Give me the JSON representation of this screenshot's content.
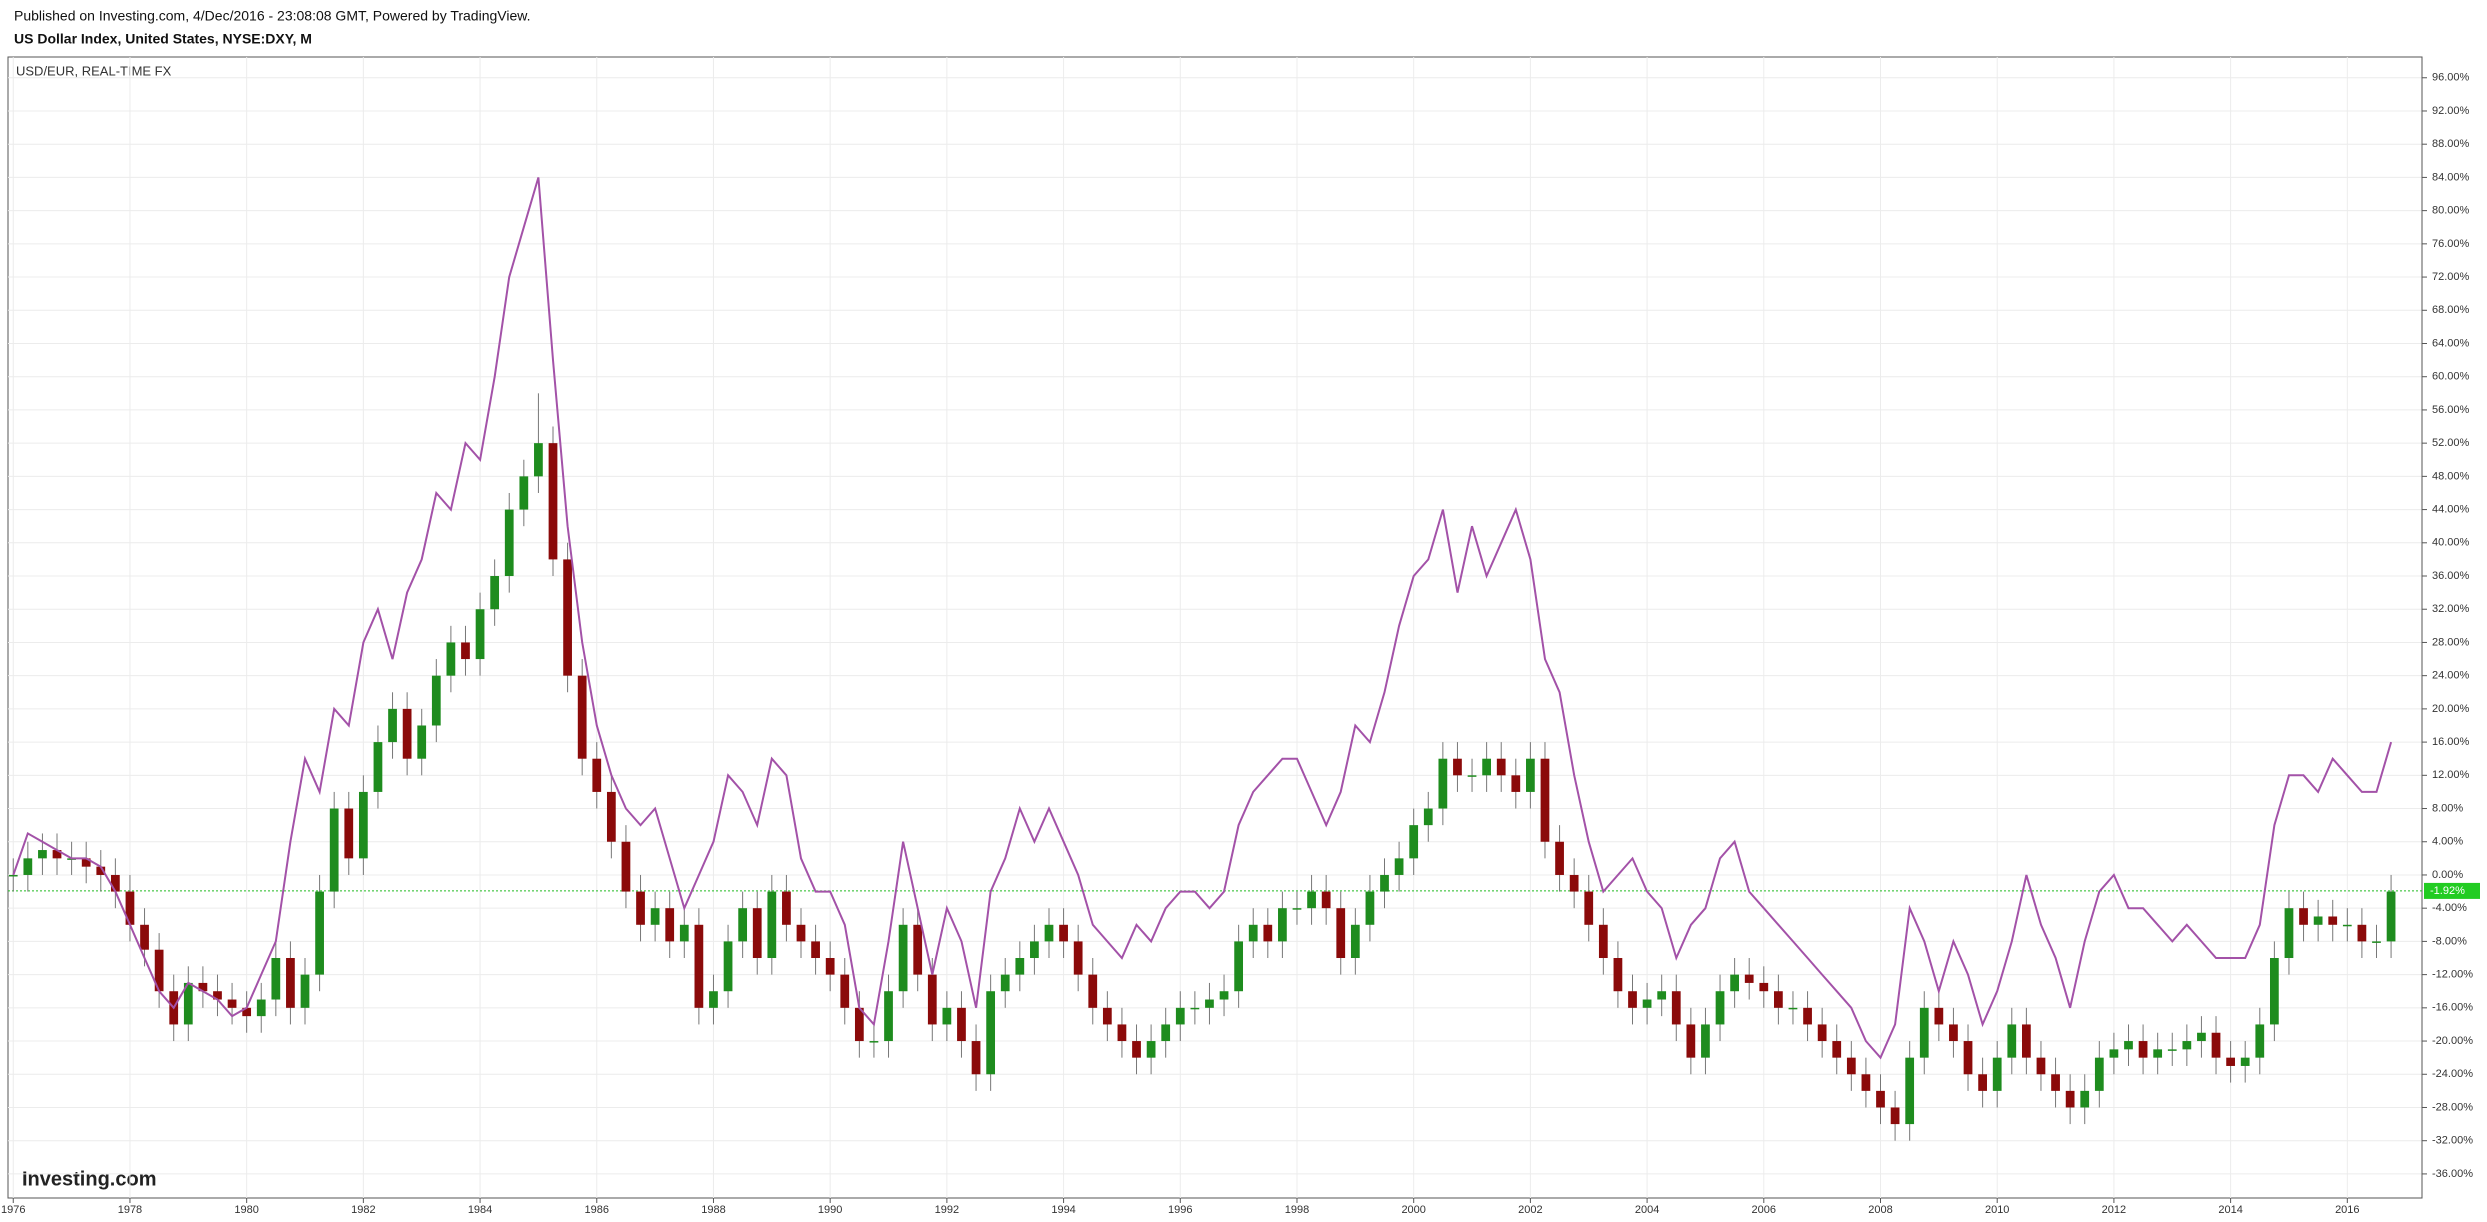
{
  "header": {
    "published": "Published on Investing.com, 4/Dec/2016 - 23:08:08 GMT, Powered by TradingView.",
    "symbol": "US Dollar Index, United States, NYSE:DXY, M"
  },
  "chart_data": {
    "type": "candlestick",
    "legend_label": "USD/EUR, REAL-TIME FX",
    "watermark": "Investing.com",
    "x": [
      1976,
      1976.25,
      1976.5,
      1976.75,
      1977,
      1977.25,
      1977.5,
      1977.75,
      1978,
      1978.25,
      1978.5,
      1978.75,
      1979,
      1979.25,
      1979.5,
      1979.75,
      1980,
      1980.25,
      1980.5,
      1980.75,
      1981,
      1981.25,
      1981.5,
      1981.75,
      1982,
      1982.25,
      1982.5,
      1982.75,
      1983,
      1983.25,
      1983.5,
      1983.75,
      1984,
      1984.25,
      1984.5,
      1984.75,
      1985,
      1985.25,
      1985.5,
      1985.75,
      1986,
      1986.25,
      1986.5,
      1986.75,
      1987,
      1987.25,
      1987.5,
      1987.75,
      1988,
      1988.25,
      1988.5,
      1988.75,
      1989,
      1989.25,
      1989.5,
      1989.75,
      1990,
      1990.25,
      1990.5,
      1990.75,
      1991,
      1991.25,
      1991.5,
      1991.75,
      1992,
      1992.25,
      1992.5,
      1992.75,
      1993,
      1993.25,
      1993.5,
      1993.75,
      1994,
      1994.25,
      1994.5,
      1994.75,
      1995,
      1995.25,
      1995.5,
      1995.75,
      1996,
      1996.25,
      1996.5,
      1996.75,
      1997,
      1997.25,
      1997.5,
      1997.75,
      1998,
      1998.25,
      1998.5,
      1998.75,
      1999,
      1999.25,
      1999.5,
      1999.75,
      2000,
      2000.25,
      2000.5,
      2000.75,
      2001,
      2001.25,
      2001.5,
      2001.75,
      2002,
      2002.25,
      2002.5,
      2002.75,
      2003,
      2003.25,
      2003.5,
      2003.75,
      2004,
      2004.25,
      2004.5,
      2004.75,
      2005,
      2005.25,
      2005.5,
      2005.75,
      2006,
      2006.25,
      2006.5,
      2006.75,
      2007,
      2007.25,
      2007.5,
      2007.75,
      2008,
      2008.25,
      2008.5,
      2008.75,
      2009,
      2009.25,
      2009.5,
      2009.75,
      2010,
      2010.25,
      2010.5,
      2010.75,
      2011,
      2011.25,
      2011.5,
      2011.75,
      2012,
      2012.25,
      2012.5,
      2012.75,
      2013,
      2013.25,
      2013.5,
      2013.75,
      2014,
      2014.25,
      2014.5,
      2014.75,
      2015,
      2015.25,
      2015.5,
      2015.75,
      2016,
      2016.25,
      2016.5,
      2016.75
    ],
    "candles": {
      "up_color": "#1e8c1e",
      "down_color": "#8b0a0a",
      "open": [
        0,
        0,
        2,
        3,
        2,
        2,
        1,
        0,
        -2,
        -6,
        -9,
        -14,
        -18,
        -13,
        -14,
        -15,
        -16,
        -17,
        -15,
        -10,
        -16,
        -12,
        -2,
        8,
        2,
        10,
        16,
        20,
        14,
        18,
        24,
        28,
        26,
        32,
        36,
        44,
        48,
        52,
        38,
        24,
        14,
        10,
        4,
        -2,
        -6,
        -4,
        -8,
        -6,
        -16,
        -14,
        -8,
        -4,
        -10,
        -2,
        -6,
        -8,
        -10,
        -12,
        -16,
        -20,
        -20,
        -14,
        -6,
        -12,
        -18,
        -16,
        -20,
        -24,
        -14,
        -12,
        -10,
        -8,
        -6,
        -8,
        -12,
        -16,
        -18,
        -20,
        -22,
        -20,
        -18,
        -16,
        -16,
        -15,
        -14,
        -8,
        -6,
        -8,
        -4,
        -4,
        -2,
        -4,
        -10,
        -6,
        -2,
        0,
        2,
        6,
        8,
        14,
        12,
        12,
        14,
        12,
        10,
        14,
        4,
        0,
        -2,
        -6,
        -10,
        -14,
        -16,
        -15,
        -14,
        -18,
        -22,
        -18,
        -14,
        -12,
        -13,
        -14,
        -16,
        -16,
        -18,
        -20,
        -22,
        -24,
        -26,
        -28,
        -30,
        -22,
        -16,
        -18,
        -20,
        -24,
        -26,
        -22,
        -18,
        -22,
        -24,
        -26,
        -28,
        -26,
        -22,
        -21,
        -20,
        -22,
        -21,
        -21,
        -20,
        -19,
        -22,
        -23,
        -22,
        -18,
        -10,
        -4,
        -6,
        -5,
        -6,
        -6,
        -8,
        -8
      ],
      "high": [
        2,
        4,
        5,
        5,
        4,
        4,
        3,
        2,
        0,
        -4,
        -7,
        -12,
        -11,
        -11,
        -12,
        -13,
        -14,
        -13,
        -8,
        -8,
        -10,
        0,
        10,
        10,
        12,
        18,
        22,
        22,
        20,
        26,
        30,
        30,
        34,
        38,
        46,
        50,
        58,
        54,
        40,
        26,
        16,
        12,
        6,
        0,
        -2,
        -2,
        -4,
        -4,
        -12,
        -6,
        -2,
        -2,
        0,
        0,
        -4,
        -6,
        -8,
        -10,
        -14,
        -18,
        -12,
        -4,
        -4,
        -10,
        -14,
        -14,
        -18,
        -12,
        -10,
        -8,
        -6,
        -4,
        -4,
        -6,
        -10,
        -14,
        -16,
        -18,
        -18,
        -16,
        -14,
        -14,
        -13,
        -12,
        -6,
        -4,
        -4,
        -2,
        -2,
        0,
        0,
        -2,
        -4,
        0,
        2,
        4,
        8,
        10,
        16,
        16,
        14,
        16,
        16,
        14,
        16,
        16,
        6,
        2,
        0,
        -4,
        -8,
        -12,
        -13,
        -12,
        -12,
        -16,
        -16,
        -12,
        -10,
        -10,
        -11,
        -12,
        -14,
        -14,
        -16,
        -18,
        -20,
        -22,
        -24,
        -26,
        -20,
        -14,
        -14,
        -16,
        -18,
        -22,
        -20,
        -16,
        -16,
        -20,
        -22,
        -24,
        -24,
        -20,
        -19,
        -18,
        -18,
        -19,
        -19,
        -18,
        -17,
        -17,
        -20,
        -20,
        -16,
        -8,
        -2,
        -2,
        -3,
        -3,
        -4,
        -4,
        -6,
        0
      ],
      "low": [
        -2,
        -2,
        0,
        0,
        0,
        -1,
        -2,
        -4,
        -8,
        -11,
        -16,
        -20,
        -20,
        -16,
        -17,
        -18,
        -19,
        -19,
        -17,
        -18,
        -18,
        -14,
        -4,
        0,
        0,
        8,
        14,
        12,
        12,
        16,
        22,
        24,
        24,
        30,
        34,
        42,
        46,
        36,
        22,
        12,
        8,
        2,
        -4,
        -8,
        -8,
        -10,
        -10,
        -18,
        -18,
        -16,
        -10,
        -12,
        -12,
        -8,
        -10,
        -12,
        -14,
        -18,
        -22,
        -22,
        -22,
        -16,
        -14,
        -20,
        -20,
        -22,
        -26,
        -26,
        -16,
        -14,
        -12,
        -10,
        -10,
        -14,
        -18,
        -20,
        -22,
        -24,
        -24,
        -22,
        -20,
        -18,
        -18,
        -17,
        -16,
        -10,
        -10,
        -10,
        -6,
        -6,
        -6,
        -12,
        -12,
        -8,
        -4,
        -2,
        0,
        4,
        6,
        10,
        10,
        10,
        10,
        8,
        8,
        2,
        -2,
        -4,
        -8,
        -12,
        -16,
        -18,
        -18,
        -17,
        -20,
        -24,
        -24,
        -20,
        -16,
        -15,
        -16,
        -18,
        -18,
        -20,
        -22,
        -24,
        -26,
        -28,
        -30,
        -32,
        -32,
        -24,
        -20,
        -22,
        -26,
        -28,
        -28,
        -24,
        -24,
        -26,
        -28,
        -30,
        -30,
        -28,
        -24,
        -23,
        -24,
        -24,
        -23,
        -23,
        -22,
        -24,
        -25,
        -25,
        -24,
        -20,
        -12,
        -8,
        -8,
        -8,
        -8,
        -10,
        -10,
        -10
      ],
      "close": [
        0,
        2,
        3,
        2,
        2,
        1,
        0,
        -2,
        -6,
        -9,
        -14,
        -18,
        -13,
        -14,
        -15,
        -16,
        -17,
        -15,
        -10,
        -16,
        -12,
        -2,
        8,
        2,
        10,
        16,
        20,
        14,
        18,
        24,
        28,
        26,
        32,
        36,
        44,
        48,
        52,
        38,
        24,
        14,
        10,
        4,
        -2,
        -6,
        -4,
        -8,
        -6,
        -16,
        -14,
        -8,
        -4,
        -10,
        -2,
        -6,
        -8,
        -10,
        -12,
        -16,
        -20,
        -20,
        -14,
        -6,
        -12,
        -18,
        -16,
        -20,
        -24,
        -14,
        -12,
        -10,
        -8,
        -6,
        -8,
        -12,
        -16,
        -18,
        -20,
        -22,
        -20,
        -18,
        -16,
        -16,
        -15,
        -14,
        -8,
        -6,
        -8,
        -4,
        -4,
        -2,
        -4,
        -10,
        -6,
        -2,
        0,
        2,
        6,
        8,
        14,
        12,
        12,
        14,
        12,
        10,
        14,
        4,
        0,
        -2,
        -6,
        -10,
        -14,
        -16,
        -15,
        -14,
        -18,
        -22,
        -18,
        -14,
        -12,
        -13,
        -14,
        -16,
        -16,
        -18,
        -20,
        -22,
        -24,
        -26,
        -28,
        -30,
        -22,
        -16,
        -18,
        -20,
        -24,
        -26,
        -22,
        -18,
        -22,
        -24,
        -26,
        -28,
        -26,
        -22,
        -21,
        -20,
        -22,
        -21,
        -21,
        -20,
        -19,
        -22,
        -23,
        -22,
        -18,
        -10,
        -4,
        -6,
        -5,
        -6,
        -6,
        -8,
        -8,
        -2
      ]
    },
    "series": [
      {
        "name": "USD/EUR, REAL-TIME FX",
        "color": "#a352a8",
        "values": [
          0,
          5,
          4,
          3,
          2,
          2,
          1,
          -2,
          -6,
          -10,
          -14,
          -16,
          -13,
          -14,
          -15,
          -17,
          -16,
          -12,
          -8,
          4,
          14,
          10,
          20,
          18,
          28,
          32,
          26,
          34,
          38,
          46,
          44,
          52,
          50,
          60,
          72,
          78,
          84,
          62,
          42,
          28,
          18,
          12,
          8,
          6,
          8,
          2,
          -4,
          0,
          4,
          12,
          10,
          6,
          14,
          12,
          2,
          -2,
          -2,
          -6,
          -16,
          -18,
          -8,
          4,
          -4,
          -12,
          -4,
          -8,
          -16,
          -2,
          2,
          8,
          4,
          8,
          4,
          0,
          -6,
          -8,
          -10,
          -6,
          -8,
          -4,
          -2,
          -2,
          -4,
          -2,
          6,
          10,
          12,
          14,
          14,
          10,
          6,
          10,
          18,
          16,
          22,
          30,
          36,
          38,
          44,
          34,
          42,
          36,
          40,
          44,
          38,
          26,
          22,
          12,
          4,
          -2,
          0,
          2,
          -2,
          -4,
          -10,
          -6,
          -4,
          2,
          4,
          -2,
          -4,
          -6,
          -8,
          -10,
          -12,
          -14,
          -16,
          -20,
          -22,
          -18,
          -4,
          -8,
          -14,
          -8,
          -12,
          -18,
          -14,
          -8,
          0,
          -6,
          -10,
          -16,
          -8,
          -2,
          0,
          -4,
          -4,
          -6,
          -8,
          -6,
          -8,
          -10,
          -10,
          -10,
          -6,
          6,
          12,
          12,
          10,
          14,
          12,
          10,
          10,
          16
        ]
      }
    ],
    "last_value": {
      "value": -1.92,
      "label": "-1.92%"
    },
    "xlim": [
      1975.91,
      2017.28
    ],
    "xticks": [
      1976,
      1978,
      1980,
      1982,
      1984,
      1986,
      1988,
      1990,
      1992,
      1994,
      1996,
      1998,
      2000,
      2002,
      2004,
      2006,
      2008,
      2010,
      2012,
      2014,
      2016
    ],
    "ylim": [
      -38.9,
      98.5
    ],
    "yticks": [
      {
        "value": -36,
        "label": "-36.00%"
      },
      {
        "value": -32,
        "label": "-32.00%"
      },
      {
        "value": -28,
        "label": "-28.00%"
      },
      {
        "value": -24,
        "label": "-24.00%"
      },
      {
        "value": -20,
        "label": "-20.00%"
      },
      {
        "value": -16,
        "label": "-16.00%"
      },
      {
        "value": -12,
        "label": "-12.00%"
      },
      {
        "value": -8,
        "label": "-8.00%"
      },
      {
        "value": -4,
        "label": "-4.00%"
      },
      {
        "value": 0,
        "label": "0.00%"
      },
      {
        "value": 4,
        "label": "4.00%"
      },
      {
        "value": 8,
        "label": "8.00%"
      },
      {
        "value": 12,
        "label": "12.00%"
      },
      {
        "value": 16,
        "label": "16.00%"
      },
      {
        "value": 20,
        "label": "20.00%"
      },
      {
        "value": 24,
        "label": "24.00%"
      },
      {
        "value": 28,
        "label": "28.00%"
      },
      {
        "value": 32,
        "label": "32.00%"
      },
      {
        "value": 36,
        "label": "36.00%"
      },
      {
        "value": 40,
        "label": "40.00%"
      },
      {
        "value": 44,
        "label": "44.00%"
      },
      {
        "value": 48,
        "label": "48.00%"
      },
      {
        "value": 52,
        "label": "52.00%"
      },
      {
        "value": 56,
        "label": "56.00%"
      },
      {
        "value": 60,
        "label": "60.00%"
      },
      {
        "value": 64,
        "label": "64.00%"
      },
      {
        "value": 68,
        "label": "68.00%"
      },
      {
        "value": 72,
        "label": "72.00%"
      },
      {
        "value": 76,
        "label": "76.00%"
      },
      {
        "value": 80,
        "label": "80.00%"
      },
      {
        "value": 84,
        "label": "84.00%"
      },
      {
        "value": 88,
        "label": "88.00%"
      },
      {
        "value": 92,
        "label": "92.00%"
      },
      {
        "value": 96,
        "label": "96.00%"
      }
    ],
    "grid": true
  }
}
